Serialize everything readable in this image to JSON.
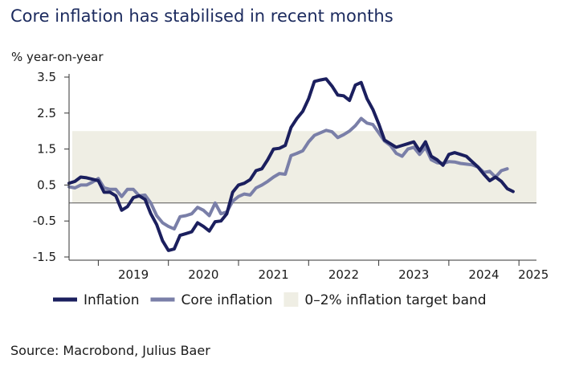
{
  "title": "Core inflation has stabilised in recent months",
  "source": "Source: Macrobond, Julius Baer",
  "colors": {
    "inflation": "#1b1f5e",
    "core_inflation": "#7a7fa8",
    "target_band": "#efeee4",
    "zero_line": "#555555",
    "axis": "#333333"
  },
  "chart_data": {
    "type": "line",
    "ylabel": "% year-on-year",
    "ylim": [
      -1.5,
      3.5
    ],
    "yticks": [
      "3.5",
      "2.5",
      "1.5",
      "0.5",
      "-0.5",
      "-1.5"
    ],
    "ytick_values": [
      3.5,
      2.5,
      1.5,
      0.5,
      -0.5,
      -1.5
    ],
    "xlim": [
      2018.583,
      2025.25
    ],
    "xtick_labels": [
      "2019",
      "2020",
      "2021",
      "2022",
      "2023",
      "2024",
      "2025"
    ],
    "x_year_boundaries": [
      2019,
      2020,
      2021,
      2022,
      2023,
      2024,
      2025
    ],
    "x_start": 2018.583,
    "x_step_months": 1,
    "target_band": {
      "label": "0–2% inflation target band",
      "from": 0,
      "to": 2
    },
    "series": [
      {
        "name": "Inflation",
        "values": [
          0.55,
          0.6,
          0.72,
          0.7,
          0.66,
          0.62,
          0.3,
          0.3,
          0.2,
          -0.2,
          -0.1,
          0.15,
          0.2,
          0.1,
          -0.3,
          -0.6,
          -1.05,
          -1.32,
          -1.28,
          -0.9,
          -0.85,
          -0.8,
          -0.55,
          -0.65,
          -0.78,
          -0.52,
          -0.5,
          -0.3,
          0.3,
          0.5,
          0.55,
          0.65,
          0.9,
          0.95,
          1.2,
          1.5,
          1.52,
          1.6,
          2.1,
          2.35,
          2.55,
          2.9,
          3.38,
          3.42,
          3.45,
          3.25,
          3.0,
          2.98,
          2.85,
          3.28,
          3.35,
          2.9,
          2.6,
          2.2,
          1.75,
          1.65,
          1.55,
          1.6,
          1.65,
          1.7,
          1.45,
          1.7,
          1.3,
          1.2,
          1.05,
          1.35,
          1.4,
          1.35,
          1.3,
          1.15,
          1.0,
          0.8,
          0.62,
          0.72,
          0.6,
          0.4,
          0.32
        ]
      },
      {
        "name": "Core inflation",
        "values": [
          0.45,
          0.42,
          0.5,
          0.5,
          0.58,
          0.68,
          0.42,
          0.38,
          0.38,
          0.18,
          0.38,
          0.38,
          0.2,
          0.22,
          0.0,
          -0.35,
          -0.55,
          -0.65,
          -0.72,
          -0.38,
          -0.35,
          -0.3,
          -0.12,
          -0.2,
          -0.35,
          0.0,
          -0.3,
          -0.25,
          0.05,
          0.18,
          0.25,
          0.22,
          0.42,
          0.5,
          0.6,
          0.72,
          0.82,
          0.8,
          1.32,
          1.38,
          1.45,
          1.7,
          1.88,
          1.95,
          2.02,
          1.98,
          1.82,
          1.9,
          2.0,
          2.15,
          2.35,
          2.22,
          2.18,
          1.95,
          1.72,
          1.6,
          1.38,
          1.3,
          1.5,
          1.55,
          1.35,
          1.55,
          1.2,
          1.12,
          1.1,
          1.15,
          1.14,
          1.1,
          1.08,
          1.06,
          1.0,
          0.85,
          0.88,
          0.72,
          0.9,
          0.95
        ]
      }
    ],
    "legend": {
      "placement": "bottom"
    }
  }
}
